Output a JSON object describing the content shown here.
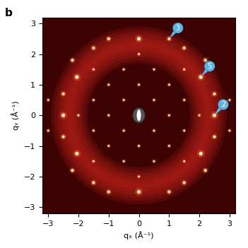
{
  "chart_data": {
    "type": "scatter",
    "title": "b",
    "x_label": "qₓ (Å⁻¹)",
    "y_label": "qᵧ (Å⁻¹)",
    "xlim": [
      -3.2,
      3.2
    ],
    "ylim": [
      -3.2,
      3.2
    ],
    "xticks": [
      {
        "value": -3,
        "label": "−3"
      },
      {
        "value": -2,
        "label": "−2"
      },
      {
        "value": -1,
        "label": "−1"
      },
      0,
      1,
      2,
      3
    ],
    "yticks": [
      {
        "value": -3,
        "label": "−3"
      },
      {
        "value": -2,
        "label": "−2"
      },
      {
        "value": -1,
        "label": "−1"
      },
      0,
      1,
      2,
      3
    ],
    "color": "#fff2b0",
    "x": [
      2.5,
      -2.5,
      0,
      0,
      2.05,
      -2.05,
      2.05,
      -2.05,
      1.0,
      -1.0,
      1.0,
      -1.0,
      2.2,
      -2.2,
      2.2,
      -2.2,
      1.5,
      -1.5,
      1.5,
      -1.5,
      2.5,
      -2.5,
      2.5,
      -2.5,
      0.5,
      -0.5,
      0.5,
      -0.5,
      1.0,
      -1.0,
      0,
      0,
      1.0,
      -1.0,
      1.0,
      -1.0,
      1.5,
      -1.5,
      1.5,
      -1.5,
      0.5,
      -0.5,
      0.5,
      -0.5,
      1.5,
      -1.5,
      1.5,
      -1.5,
      2.0,
      -2.0,
      0,
      0,
      3.0,
      -3.0,
      3.0,
      -3.0
    ],
    "y": [
      0,
      0,
      2.5,
      -2.5,
      1.25,
      1.25,
      -1.25,
      -1.25,
      2.5,
      2.5,
      -2.5,
      -2.5,
      1.8,
      1.8,
      -1.8,
      -1.8,
      2.2,
      2.2,
      -2.2,
      -2.2,
      0.7,
      0.7,
      -0.7,
      -0.7,
      0.5,
      0.5,
      -0.5,
      -0.5,
      0,
      0,
      1.0,
      -1.0,
      1.0,
      1.0,
      -1.0,
      -1.0,
      0.5,
      0.5,
      -0.5,
      -0.5,
      1.5,
      1.5,
      -1.5,
      -1.5,
      1.5,
      1.5,
      -1.5,
      -1.5,
      0,
      0,
      2.0,
      -2.0,
      0.5,
      0.5,
      -0.5,
      -0.5
    ],
    "intensity": [
      1,
      1,
      1,
      1,
      1,
      1,
      1,
      1,
      0.6,
      0.6,
      0.6,
      0.6,
      0.6,
      0.6,
      0.6,
      0.6,
      0.6,
      0.6,
      0.6,
      0.6,
      0.6,
      0.6,
      0.6,
      0.6,
      0.3,
      0.3,
      0.3,
      0.3,
      0.3,
      0.3,
      0.3,
      0.3,
      0.3,
      0.3,
      0.3,
      0.3,
      0.3,
      0.3,
      0.3,
      0.3,
      0.3,
      0.3,
      0.3,
      0.3,
      0.3,
      0.3,
      0.3,
      0.3,
      0.3,
      0.3,
      0.3,
      0.3,
      0.3,
      0.3,
      0.3,
      0.3
    ],
    "ring": {
      "radius": 2.3,
      "width": 1.2
    },
    "beam_stop": [
      0,
      0
    ],
    "annotations": [
      {
        "label": "3",
        "x": 1.0,
        "y": 2.5
      },
      {
        "label": "5",
        "x": 2.05,
        "y": 1.25
      },
      {
        "label": "2",
        "x": 2.5,
        "y": 0
      }
    ]
  }
}
